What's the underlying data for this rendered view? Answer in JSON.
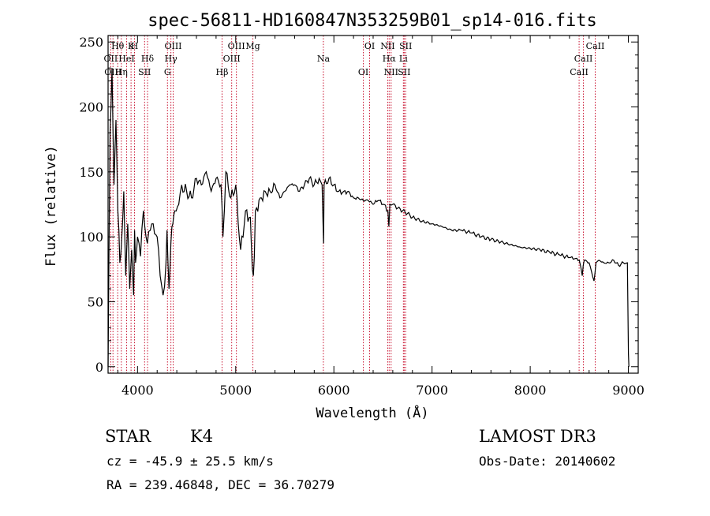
{
  "chart_data": {
    "type": "line",
    "title": "spec-56811-HD160847N353259B01_sp14-016.fits",
    "xlabel": "Wavelength (Å)",
    "ylabel": "Flux (relative)",
    "xlim": [
      3700,
      9100
    ],
    "ylim": [
      -5,
      255
    ],
    "xticks": [
      4000,
      5000,
      6000,
      7000,
      8000,
      9000
    ],
    "yticks": [
      0,
      50,
      100,
      150,
      200,
      250
    ],
    "series": [
      {
        "name": "flux",
        "x": [
          3700,
          3720,
          3740,
          3760,
          3780,
          3800,
          3820,
          3840,
          3860,
          3880,
          3900,
          3920,
          3940,
          3960,
          3970,
          3980,
          4000,
          4030,
          4060,
          4100,
          4130,
          4160,
          4200,
          4230,
          4260,
          4290,
          4300,
          4320,
          4340,
          4360,
          4380,
          4420,
          4450,
          4500,
          4550,
          4600,
          4650,
          4700,
          4750,
          4800,
          4850,
          4870,
          4900,
          4950,
          5000,
          5050,
          5100,
          5150,
          5170,
          5180,
          5190,
          5200,
          5250,
          5300,
          5350,
          5400,
          5450,
          5500,
          5550,
          5600,
          5650,
          5700,
          5750,
          5800,
          5850,
          5880,
          5890,
          5895,
          5900,
          5950,
          6000,
          6050,
          6100,
          6150,
          6200,
          6250,
          6300,
          6350,
          6400,
          6450,
          6500,
          6550,
          6560,
          6565,
          6570,
          6600,
          6650,
          6700,
          6750,
          6800,
          6900,
          7000,
          7100,
          7200,
          7300,
          7400,
          7500,
          7600,
          7700,
          7800,
          7900,
          8000,
          8100,
          8200,
          8300,
          8400,
          8450,
          8500,
          8530,
          8540,
          8550,
          8600,
          8650,
          8660,
          8670,
          8700,
          8750,
          8800,
          8850,
          8900,
          8950,
          8990,
          9000,
          9005
        ],
        "y": [
          0,
          180,
          230,
          140,
          190,
          120,
          80,
          100,
          135,
          70,
          110,
          60,
          90,
          55,
          105,
          80,
          100,
          85,
          120,
          95,
          105,
          110,
          100,
          70,
          55,
          80,
          105,
          60,
          95,
          110,
          120,
          125,
          140,
          135,
          130,
          145,
          140,
          150,
          135,
          145,
          140,
          100,
          150,
          130,
          140,
          90,
          120,
          115,
          75,
          70,
          85,
          120,
          130,
          135,
          135,
          140,
          130,
          135,
          140,
          140,
          135,
          140,
          145,
          140,
          145,
          140,
          110,
          95,
          140,
          145,
          140,
          135,
          135,
          135,
          130,
          130,
          128,
          128,
          125,
          128,
          125,
          120,
          108,
          115,
          125,
          125,
          122,
          120,
          118,
          115,
          112,
          110,
          108,
          105,
          105,
          103,
          100,
          98,
          96,
          94,
          92,
          91,
          90,
          88,
          86,
          84,
          83,
          82,
          70,
          78,
          82,
          80,
          66,
          72,
          80,
          82,
          80,
          80,
          82,
          78,
          80,
          80,
          10,
          0
        ]
      }
    ],
    "spectral_lines": [
      {
        "name": "Hθ",
        "wavelength": 3798
      },
      {
        "name": "OII",
        "wavelength": 3727
      },
      {
        "name": "OIII",
        "wavelength": 3750
      },
      {
        "name": "K",
        "wavelength": 3934
      },
      {
        "name": "HeI",
        "wavelength": 3889
      },
      {
        "name": "Hη",
        "wavelength": 3835
      },
      {
        "name": "H",
        "wavelength": 3969
      },
      {
        "name": "Hδ",
        "wavelength": 4102
      },
      {
        "name": "SII",
        "wavelength": 4072
      },
      {
        "name": "OIII",
        "wavelength": 4363
      },
      {
        "name": "Hγ",
        "wavelength": 4340
      },
      {
        "name": "G",
        "wavelength": 4305
      },
      {
        "name": "OIII",
        "wavelength": 5007
      },
      {
        "name": "OIII",
        "wavelength": 4959
      },
      {
        "name": "Hβ",
        "wavelength": 4861
      },
      {
        "name": "Mg",
        "wavelength": 5175
      },
      {
        "name": "Na",
        "wavelength": 5893
      },
      {
        "name": "OI",
        "wavelength": 6300
      },
      {
        "name": "OI",
        "wavelength": 6364
      },
      {
        "name": "Hα",
        "wavelength": 6563
      },
      {
        "name": "SII",
        "wavelength": 6716
      },
      {
        "name": "NII",
        "wavelength": 6548
      },
      {
        "name": "Li",
        "wavelength": 6708
      },
      {
        "name": "NII",
        "wavelength": 6583
      },
      {
        "name": "SII",
        "wavelength": 6731
      },
      {
        "name": "CaII",
        "wavelength": 8542
      },
      {
        "name": "CaII",
        "wavelength": 8498
      },
      {
        "name": "CaII",
        "wavelength": 8662
      }
    ]
  },
  "info": {
    "object_class": "STAR",
    "subclass": "K4",
    "survey": "LAMOST DR3",
    "redshift": "cz = -45.9 ± 25.5 km/s",
    "obs_date": "Obs-Date: 20140602",
    "coords": "RA = 239.46848, DEC =  36.70279"
  },
  "colors": {
    "line_marker": "#c8102e",
    "spectrum": "#000000",
    "axis": "#000000"
  }
}
